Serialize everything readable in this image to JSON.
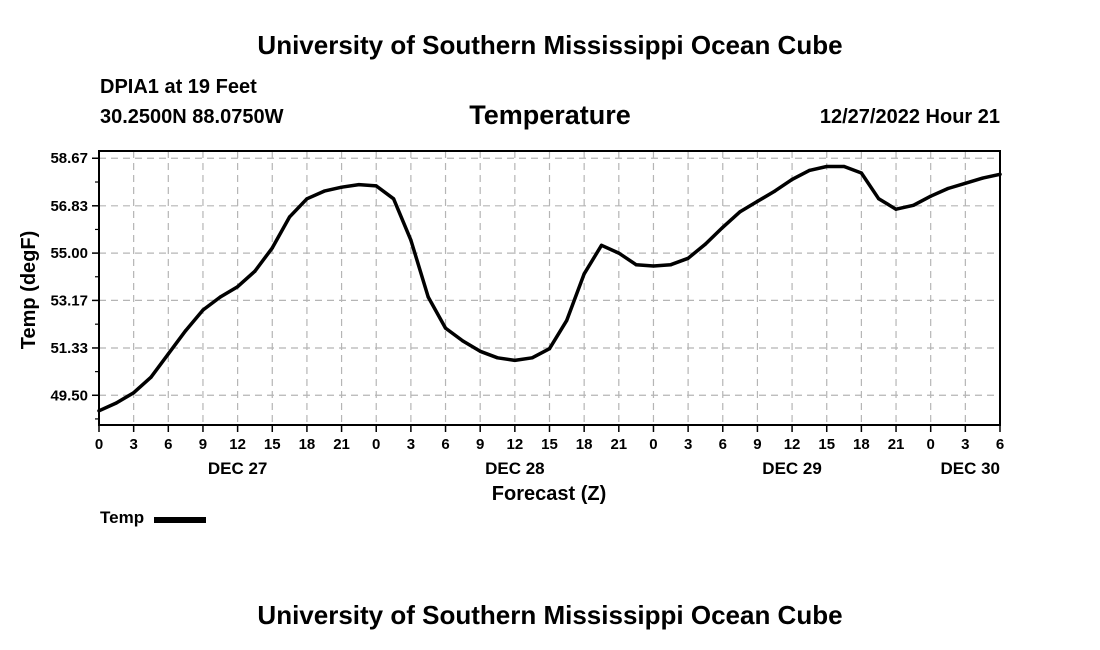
{
  "page": {
    "title": "University of Southern Mississippi Ocean Cube",
    "footer_title": "University of Southern Mississippi Ocean Cube",
    "station": "DPIA1 at 19 Feet",
    "coordinates": "30.2500N  88.0750W",
    "run_time": "12/27/2022 Hour 21"
  },
  "legend": {
    "label": "Temp",
    "color": "#000000"
  },
  "chart_data": {
    "type": "line",
    "title": "Temperature",
    "xlabel": "Forecast (Z)",
    "ylabel": "Temp (degF)",
    "ylim": [
      48.35,
      58.95
    ],
    "xlim": [
      0,
      78
    ],
    "y_ticks": [
      "58.67",
      "56.83",
      "55.00",
      "53.17",
      "51.33",
      "49.50"
    ],
    "x_tick_labels": [
      "0",
      "3",
      "6",
      "9",
      "12",
      "15",
      "18",
      "21",
      "0",
      "3",
      "6",
      "9",
      "12",
      "15",
      "18",
      "21",
      "0",
      "3",
      "6",
      "9",
      "12",
      "15",
      "18",
      "21",
      "0",
      "3",
      "6"
    ],
    "day_labels": [
      {
        "label": "DEC 27",
        "hour": 12
      },
      {
        "label": "DEC 28",
        "hour": 36
      },
      {
        "label": "DEC 29",
        "hour": 60
      },
      {
        "label": "DEC 30",
        "hour": 78
      }
    ],
    "grid": true,
    "series": [
      {
        "name": "Temp",
        "x": [
          0,
          1.5,
          3,
          4.5,
          6,
          7.5,
          9,
          10.5,
          12,
          13.5,
          15,
          16.5,
          18,
          19.5,
          21,
          22.5,
          24,
          25.5,
          27,
          28.5,
          30,
          31.5,
          33,
          34.5,
          36,
          37.5,
          39,
          40.5,
          42,
          43.5,
          45,
          46.5,
          48,
          49.5,
          51,
          52.5,
          54,
          55.5,
          57,
          58.5,
          60,
          61.5,
          63,
          64.5,
          66,
          67.5,
          69,
          70.5,
          72,
          73.5,
          75,
          76.5,
          78
        ],
        "values": [
          48.9,
          49.2,
          49.6,
          50.2,
          51.1,
          52.0,
          52.8,
          53.3,
          53.7,
          54.3,
          55.2,
          56.4,
          57.1,
          57.4,
          57.55,
          57.65,
          57.6,
          57.1,
          55.5,
          53.3,
          52.1,
          51.6,
          51.2,
          50.95,
          50.85,
          50.95,
          51.3,
          52.4,
          54.2,
          55.3,
          55.0,
          54.55,
          54.5,
          54.55,
          54.8,
          55.35,
          56.0,
          56.6,
          57.0,
          57.4,
          57.85,
          58.2,
          58.35,
          58.35,
          58.1,
          57.1,
          56.7,
          56.85,
          57.2,
          57.5,
          57.7,
          57.9,
          58.05
        ]
      }
    ]
  }
}
